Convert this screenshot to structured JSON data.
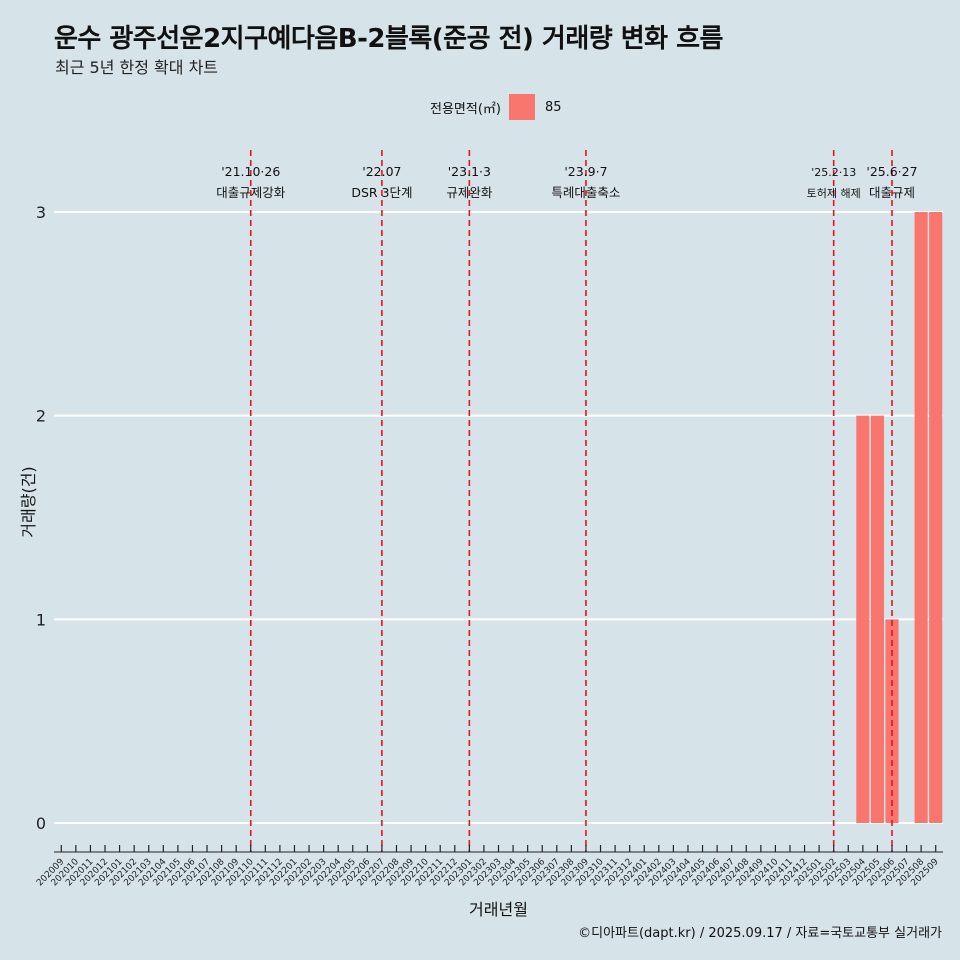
{
  "title": "운수 광주선운2지구예다음B-2블록(준공 전) 거래량 변화 흐름",
  "subtitle": "최근 5년 한정 확대 차트",
  "legend": {
    "title": "전용면적(㎡)",
    "entries": [
      {
        "label": "85",
        "color": "#f8766d"
      }
    ]
  },
  "caption": "©디아파트(dapt.kr) / 2025.09.17 / 자료=국토교통부 실거래가",
  "chart_data": {
    "type": "bar",
    "title": "운수 광주선운2지구예다음B-2블록(준공 전) 거래량 변화 흐름",
    "xlabel": "거래년월",
    "ylabel": "거래량(건)",
    "ylim": [
      0,
      3
    ],
    "yticks": [
      0,
      1,
      2,
      3
    ],
    "grid": true,
    "legend_position": "top",
    "categories": [
      "202009",
      "202010",
      "202011",
      "202012",
      "202101",
      "202102",
      "202103",
      "202104",
      "202105",
      "202106",
      "202107",
      "202108",
      "202109",
      "202110",
      "202111",
      "202112",
      "202201",
      "202202",
      "202203",
      "202204",
      "202205",
      "202206",
      "202207",
      "202208",
      "202209",
      "202210",
      "202211",
      "202212",
      "202301",
      "202302",
      "202303",
      "202304",
      "202305",
      "202306",
      "202307",
      "202308",
      "202309",
      "202310",
      "202311",
      "202312",
      "202401",
      "202402",
      "202403",
      "202404",
      "202405",
      "202406",
      "202407",
      "202408",
      "202409",
      "202410",
      "202411",
      "202412",
      "202501",
      "202502",
      "202503",
      "202504",
      "202505",
      "202506",
      "202507",
      "202508",
      "202509"
    ],
    "series": [
      {
        "name": "85",
        "color": "#f8766d",
        "values": [
          0,
          0,
          0,
          0,
          0,
          0,
          0,
          0,
          0,
          0,
          0,
          0,
          0,
          0,
          0,
          0,
          0,
          0,
          0,
          0,
          0,
          0,
          0,
          0,
          0,
          0,
          0,
          0,
          0,
          0,
          0,
          0,
          0,
          0,
          0,
          0,
          0,
          0,
          0,
          0,
          0,
          0,
          0,
          0,
          0,
          0,
          0,
          0,
          0,
          0,
          0,
          0,
          0,
          0,
          0,
          2,
          2,
          1,
          0,
          3,
          3
        ]
      }
    ],
    "annotations": [
      {
        "category": "202110",
        "date": "'21.10·26",
        "text": "대출규제강화"
      },
      {
        "category": "202207",
        "date": "'22.07",
        "text": "DSR 3단계"
      },
      {
        "category": "202301",
        "date": "'23.1·3",
        "text": "규제완화"
      },
      {
        "category": "202309",
        "date": "'23.9·7",
        "text": "특례대출축소"
      },
      {
        "category": "202502",
        "date": "'25.2·13",
        "text": "토허제 해제"
      },
      {
        "category": "202506",
        "date": "'25.6·27",
        "text": "대출규제"
      }
    ],
    "annotation_color": "#e8141b"
  }
}
